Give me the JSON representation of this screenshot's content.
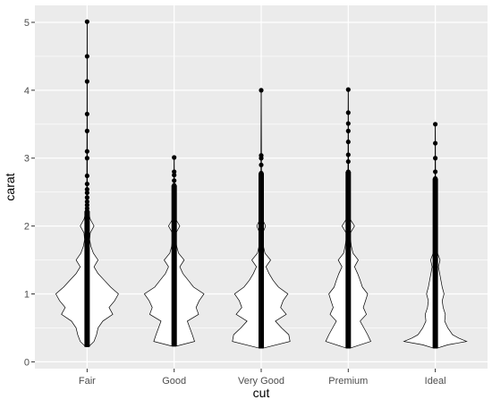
{
  "chart_data": {
    "type": "violin",
    "xlabel": "cut",
    "ylabel": "carat",
    "categories": [
      "Fair",
      "Good",
      "Very Good",
      "Premium",
      "Ideal"
    ],
    "ylim": [
      -0.1,
      5.25
    ],
    "yticks": [
      0,
      1,
      2,
      3,
      4,
      5
    ],
    "grid": true,
    "background": "#EBEBEB",
    "grid_color": "#FFFFFF",
    "violin_fill": "#FFFFFF",
    "outline_color": "#000000",
    "groups": [
      {
        "category": "Fair",
        "range": [
          0.22,
          5.01
        ],
        "outliers": [
          2.22,
          2.26,
          2.31,
          2.36,
          2.42,
          2.49,
          2.54,
          2.62,
          2.74,
          3.0,
          3.1,
          3.4,
          3.65,
          4.13,
          4.5,
          5.01
        ],
        "density": [
          [
            0.22,
            0.04
          ],
          [
            0.3,
            0.22
          ],
          [
            0.4,
            0.3
          ],
          [
            0.5,
            0.35
          ],
          [
            0.6,
            0.5
          ],
          [
            0.7,
            0.82
          ],
          [
            0.8,
            0.7
          ],
          [
            0.9,
            0.88
          ],
          [
            1.0,
            1.0
          ],
          [
            1.1,
            0.75
          ],
          [
            1.2,
            0.55
          ],
          [
            1.3,
            0.35
          ],
          [
            1.4,
            0.22
          ],
          [
            1.5,
            0.35
          ],
          [
            1.6,
            0.2
          ],
          [
            1.7,
            0.12
          ],
          [
            1.8,
            0.08
          ],
          [
            1.9,
            0.1
          ],
          [
            2.0,
            0.22
          ],
          [
            2.1,
            0.1
          ],
          [
            2.2,
            0.04
          ],
          [
            2.3,
            0.02
          ],
          [
            2.6,
            0.01
          ],
          [
            3.5,
            0.005
          ],
          [
            5.01,
            0.002
          ]
        ]
      },
      {
        "category": "Good",
        "range": [
          0.23,
          3.01
        ],
        "outliers": [
          2.6,
          2.67,
          2.75,
          2.8,
          3.01
        ],
        "density": [
          [
            0.23,
            0.05
          ],
          [
            0.3,
            0.65
          ],
          [
            0.4,
            0.58
          ],
          [
            0.5,
            0.5
          ],
          [
            0.6,
            0.42
          ],
          [
            0.7,
            0.78
          ],
          [
            0.8,
            0.7
          ],
          [
            0.9,
            0.8
          ],
          [
            1.0,
            0.95
          ],
          [
            1.1,
            0.62
          ],
          [
            1.2,
            0.45
          ],
          [
            1.3,
            0.28
          ],
          [
            1.4,
            0.18
          ],
          [
            1.5,
            0.32
          ],
          [
            1.6,
            0.14
          ],
          [
            1.7,
            0.08
          ],
          [
            1.8,
            0.05
          ],
          [
            1.9,
            0.06
          ],
          [
            2.0,
            0.18
          ],
          [
            2.1,
            0.05
          ],
          [
            2.2,
            0.02
          ],
          [
            2.5,
            0.01
          ],
          [
            3.01,
            0.004
          ]
        ]
      },
      {
        "category": "Very Good",
        "range": [
          0.2,
          4.0
        ],
        "outliers": [
          2.78,
          2.9,
          3.0,
          3.04,
          4.0
        ],
        "density": [
          [
            0.2,
            0.05
          ],
          [
            0.3,
            0.92
          ],
          [
            0.4,
            0.88
          ],
          [
            0.5,
            0.65
          ],
          [
            0.6,
            0.45
          ],
          [
            0.7,
            0.8
          ],
          [
            0.8,
            0.62
          ],
          [
            0.9,
            0.7
          ],
          [
            1.0,
            0.85
          ],
          [
            1.1,
            0.55
          ],
          [
            1.2,
            0.38
          ],
          [
            1.3,
            0.25
          ],
          [
            1.4,
            0.15
          ],
          [
            1.5,
            0.3
          ],
          [
            1.6,
            0.12
          ],
          [
            1.7,
            0.07
          ],
          [
            1.8,
            0.05
          ],
          [
            1.9,
            0.05
          ],
          [
            2.0,
            0.14
          ],
          [
            2.1,
            0.04
          ],
          [
            2.3,
            0.02
          ],
          [
            2.7,
            0.01
          ],
          [
            4.0,
            0.003
          ]
        ]
      },
      {
        "category": "Premium",
        "range": [
          0.2,
          4.01
        ],
        "outliers": [
          2.8,
          2.95,
          3.05,
          3.24,
          3.4,
          3.51,
          3.67,
          4.01
        ],
        "density": [
          [
            0.2,
            0.05
          ],
          [
            0.3,
            0.72
          ],
          [
            0.4,
            0.62
          ],
          [
            0.5,
            0.5
          ],
          [
            0.6,
            0.38
          ],
          [
            0.7,
            0.58
          ],
          [
            0.8,
            0.48
          ],
          [
            0.9,
            0.55
          ],
          [
            1.0,
            0.62
          ],
          [
            1.1,
            0.45
          ],
          [
            1.2,
            0.38
          ],
          [
            1.3,
            0.3
          ],
          [
            1.4,
            0.2
          ],
          [
            1.5,
            0.32
          ],
          [
            1.6,
            0.15
          ],
          [
            1.7,
            0.1
          ],
          [
            1.8,
            0.07
          ],
          [
            1.9,
            0.07
          ],
          [
            2.0,
            0.2
          ],
          [
            2.1,
            0.06
          ],
          [
            2.2,
            0.03
          ],
          [
            2.5,
            0.015
          ],
          [
            3.0,
            0.008
          ],
          [
            4.01,
            0.003
          ]
        ]
      },
      {
        "category": "Ideal",
        "range": [
          0.2,
          3.5
        ],
        "outliers": [
          2.7,
          2.8,
          3.0,
          3.22,
          3.5
        ],
        "density": [
          [
            0.2,
            0.05
          ],
          [
            0.25,
            0.4
          ],
          [
            0.3,
            1.0
          ],
          [
            0.35,
            0.75
          ],
          [
            0.4,
            0.55
          ],
          [
            0.5,
            0.4
          ],
          [
            0.6,
            0.3
          ],
          [
            0.7,
            0.32
          ],
          [
            0.8,
            0.25
          ],
          [
            0.9,
            0.22
          ],
          [
            1.0,
            0.28
          ],
          [
            1.1,
            0.22
          ],
          [
            1.2,
            0.18
          ],
          [
            1.3,
            0.14
          ],
          [
            1.4,
            0.1
          ],
          [
            1.5,
            0.15
          ],
          [
            1.6,
            0.07
          ],
          [
            1.7,
            0.04
          ],
          [
            1.8,
            0.03
          ],
          [
            1.9,
            0.025
          ],
          [
            2.0,
            0.05
          ],
          [
            2.1,
            0.02
          ],
          [
            2.5,
            0.01
          ],
          [
            3.5,
            0.003
          ]
        ]
      }
    ]
  }
}
